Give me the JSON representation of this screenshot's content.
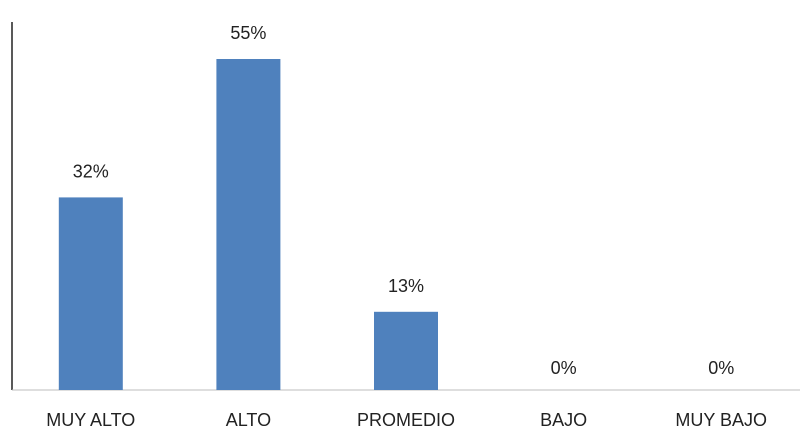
{
  "chart_data": {
    "type": "bar",
    "categories": [
      "MUY ALTO",
      "ALTO",
      "PROMEDIO",
      "BAJO",
      "MUY BAJO"
    ],
    "values": [
      32,
      55,
      13,
      0,
      0
    ],
    "data_labels": [
      "32%",
      "55%",
      "13%",
      "0%",
      "0%"
    ],
    "title": "",
    "xlabel": "",
    "ylabel": "",
    "ylim": [
      0,
      60
    ],
    "grid": false,
    "legend": "none",
    "bar_color": "#4f81bd"
  }
}
